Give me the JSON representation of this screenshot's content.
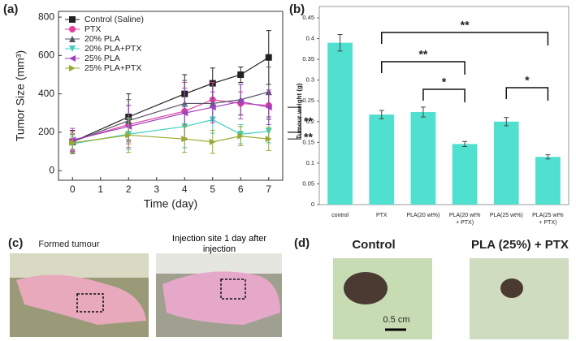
{
  "chart_data": [
    {
      "type": "line",
      "panel_label": "(a)",
      "xlabel": "Time (day)",
      "ylabel": "Tumor Size (mm³)",
      "x": [
        0,
        2,
        4,
        5,
        6,
        7
      ],
      "xlim": [
        -0.5,
        7.5
      ],
      "xticks": [
        0,
        1,
        2,
        3,
        4,
        5,
        6,
        7
      ],
      "ylim": [
        -50,
        830
      ],
      "yticks": [
        0,
        200,
        400,
        600,
        800
      ],
      "legend": "upper left",
      "series": [
        {
          "name": "Control (Saline)",
          "color": "#222222",
          "marker": "square",
          "values": [
            150,
            280,
            400,
            455,
            500,
            590
          ],
          "errors": [
            60,
            120,
            100,
            80,
            40,
            140
          ]
        },
        {
          "name": "PTX",
          "color": "#e040a0",
          "marker": "circle",
          "values": [
            155,
            240,
            310,
            370,
            350,
            340
          ],
          "errors": [
            50,
            100,
            150,
            90,
            60,
            70
          ]
        },
        {
          "name": "20% PLA",
          "color": "#555566",
          "marker": "triangle-up",
          "values": [
            150,
            260,
            350,
            350,
            370,
            410
          ],
          "errors": [
            40,
            110,
            120,
            90,
            80,
            130
          ]
        },
        {
          "name": "20% PLA+PTX",
          "color": "#40d0c0",
          "marker": "triangle-down",
          "values": [
            140,
            190,
            230,
            265,
            190,
            205
          ],
          "errors": [
            40,
            80,
            110,
            70,
            50,
            60
          ]
        },
        {
          "name": "25% PLA",
          "color": "#a040c0",
          "marker": "triangle-left",
          "values": [
            160,
            230,
            300,
            330,
            360,
            330
          ],
          "errors": [
            60,
            110,
            130,
            80,
            90,
            90
          ]
        },
        {
          "name": "25% PLA+PTX",
          "color": "#9aaa30",
          "marker": "triangle-right",
          "values": [
            145,
            185,
            165,
            150,
            180,
            165
          ],
          "errors": [
            50,
            90,
            70,
            60,
            50,
            60
          ]
        }
      ],
      "annotations": [
        "**",
        "**"
      ]
    },
    {
      "type": "bar",
      "panel_label": "(b)",
      "ylabel": "Tumour weight (g)",
      "color": "#4fe0cf",
      "categories": [
        "control",
        "PTX",
        "PLA(20 wt%)",
        "PLA(20 wt% + PTX)",
        "PLA(25 wt%)",
        "PLA(25 wt% + PTX)"
      ],
      "values": [
        0.39,
        0.217,
        0.223,
        0.146,
        0.2,
        0.115
      ],
      "errors": [
        0.02,
        0.01,
        0.012,
        0.006,
        0.01,
        0.005
      ],
      "ylim": [
        0,
        0.45
      ],
      "yticks": [
        0,
        0.05,
        0.1,
        0.15,
        0.2,
        0.25,
        0.3,
        0.35,
        0.4,
        0.45
      ],
      "annotations": [
        "**",
        "**",
        "*",
        "*"
      ]
    }
  ],
  "photos": {
    "panel_c": "(c)",
    "caption_1": "Formed tumour",
    "caption_2": "Injection site 1 day after injection",
    "panel_d": "(d)",
    "title_1": "Control",
    "title_2": "PLA (25%) + PTX",
    "scale_bar": "0.5 cm"
  }
}
